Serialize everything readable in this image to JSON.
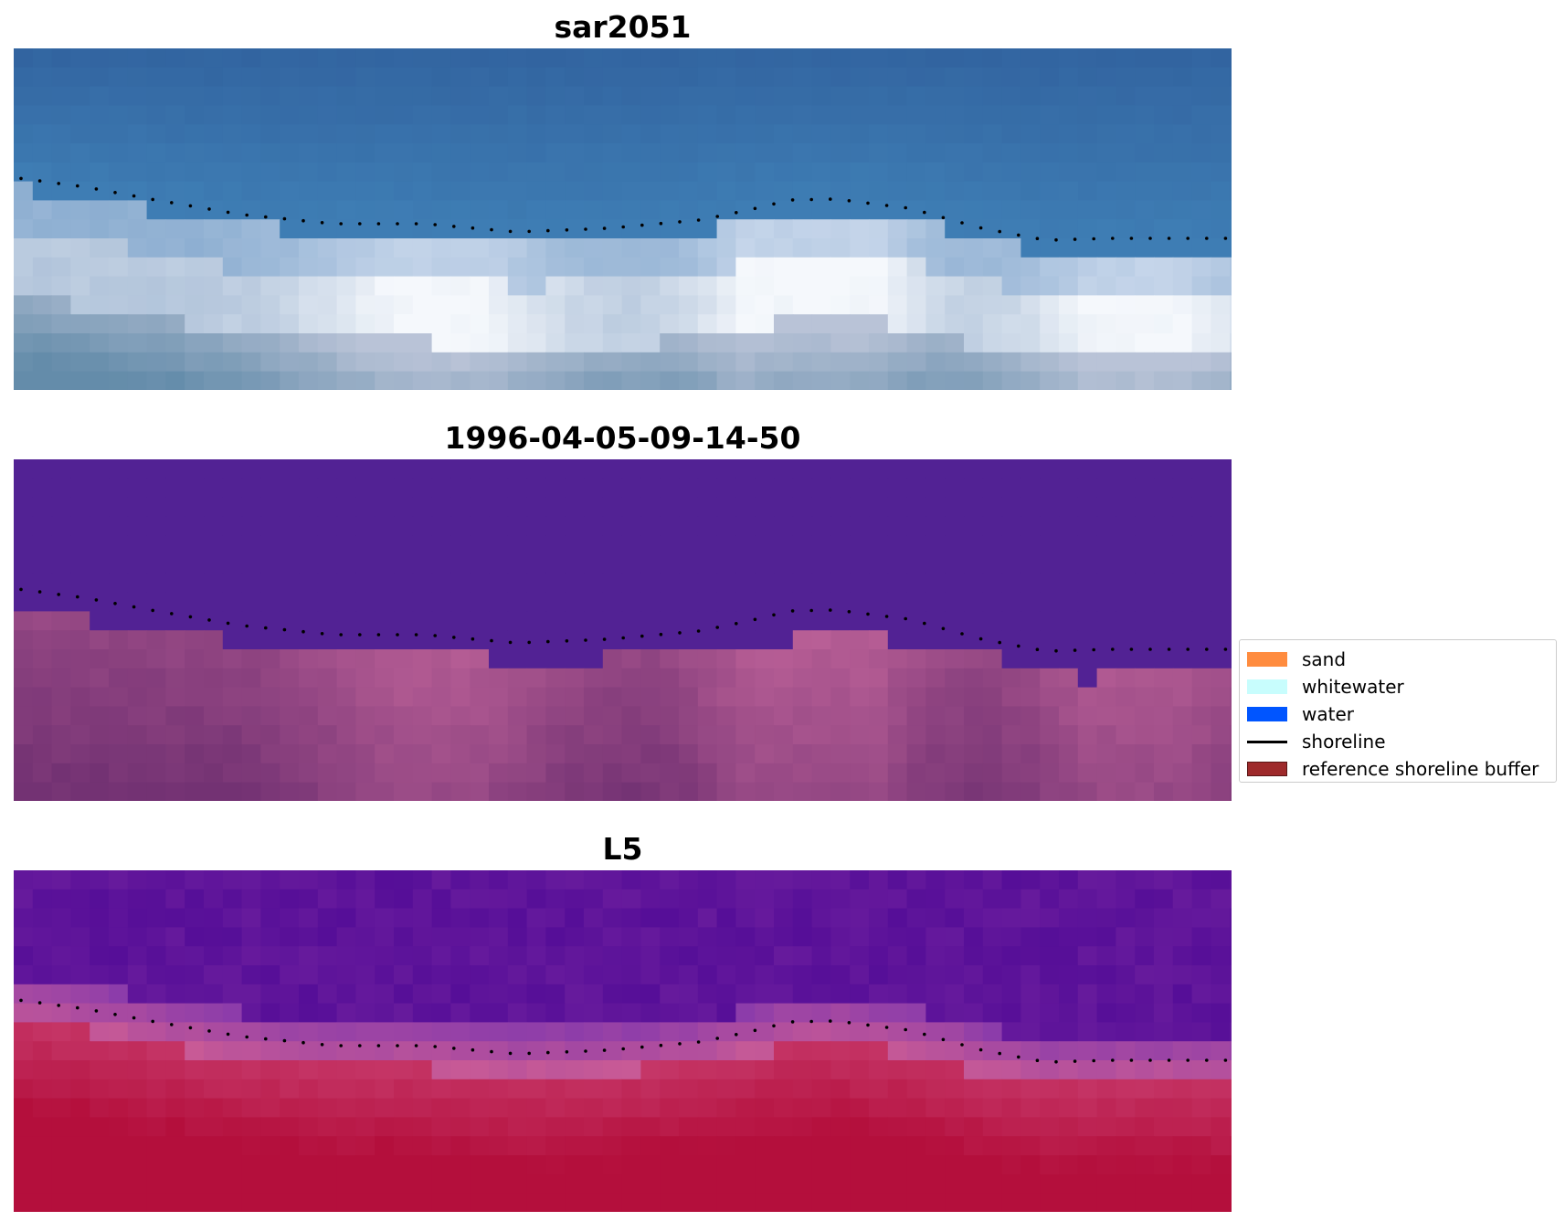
{
  "panels": [
    {
      "title": "sar2051",
      "style": "rgb"
    },
    {
      "title": "1996-04-05-09-14-50",
      "style": "classified"
    },
    {
      "title": "L5",
      "style": "falsecolor"
    }
  ],
  "legend": {
    "items": [
      {
        "label": "sand",
        "color": "#ff8c3f",
        "kind": "patch"
      },
      {
        "label": "whitewater",
        "color": "#c8fdfd",
        "kind": "patch"
      },
      {
        "label": "water",
        "color": "#0055ff",
        "kind": "patch"
      },
      {
        "label": "shoreline",
        "color": "#000000",
        "kind": "line"
      },
      {
        "label": "reference shoreline buffer",
        "color": "#9e2a2b",
        "kind": "patch"
      }
    ]
  }
}
